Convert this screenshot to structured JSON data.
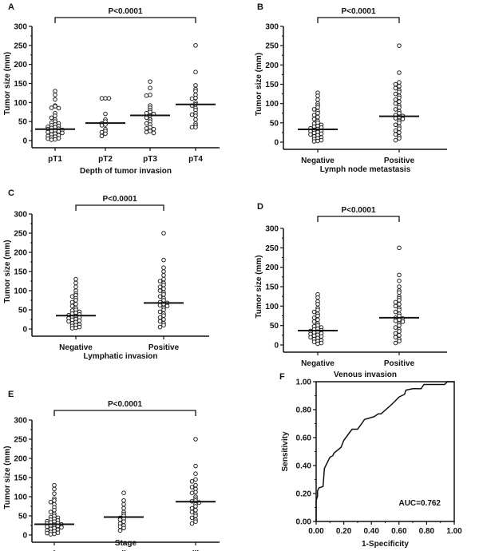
{
  "chart_data": [
    {
      "panel": "A",
      "type": "scatter",
      "ylabel": "Tumor size (mm)",
      "xlabel": "Depth of tumor invasion",
      "ylim": [
        0,
        300
      ],
      "yticks": [
        "0",
        "50",
        "100",
        "150",
        "200",
        "250",
        "300"
      ],
      "significance": "P<0.0001",
      "categories": [
        "pT1",
        "pT2",
        "pT3",
        "pT4"
      ],
      "medians": [
        30,
        46,
        66,
        95
      ],
      "groups": [
        [
          130,
          120,
          108,
          92,
          90,
          86,
          85,
          72,
          65,
          60,
          55,
          50,
          47,
          45,
          42,
          40,
          38,
          36,
          35,
          33,
          31,
          30,
          28,
          27,
          25,
          24,
          22,
          20,
          18,
          16,
          14,
          12,
          10,
          8,
          6,
          5,
          3,
          2
        ],
        [
          111,
          111,
          111,
          70,
          55,
          50,
          45,
          42,
          40,
          30,
          25,
          22,
          18,
          12
        ],
        [
          155,
          138,
          120,
          118,
          92,
          86,
          80,
          75,
          72,
          70,
          65,
          60,
          55,
          50,
          45,
          42,
          35,
          32,
          30,
          25,
          22,
          20
        ],
        [
          250,
          180,
          145,
          135,
          130,
          120,
          112,
          110,
          100,
          95,
          92,
          85,
          80,
          72,
          68,
          65,
          55,
          45,
          40,
          35,
          35
        ]
      ]
    },
    {
      "panel": "B",
      "type": "scatter",
      "ylabel": "Tumor size (mm)",
      "xlabel": "Lymph node metastasis",
      "ylim": [
        0,
        300
      ],
      "yticks": [
        "0",
        "50",
        "100",
        "150",
        "200",
        "250",
        "300"
      ],
      "significance": "P<0.0001",
      "categories": [
        "Negative",
        "Positive"
      ],
      "medians": [
        33,
        67
      ],
      "groups": [
        [
          128,
          120,
          110,
          100,
          95,
          90,
          85,
          80,
          75,
          70,
          65,
          60,
          55,
          50,
          48,
          45,
          42,
          40,
          38,
          36,
          34,
          32,
          30,
          28,
          26,
          24,
          22,
          20,
          18,
          15,
          12,
          10,
          8,
          5,
          3,
          2
        ],
        [
          250,
          180,
          155,
          150,
          145,
          140,
          135,
          130,
          125,
          120,
          115,
          110,
          105,
          100,
          95,
          90,
          85,
          80,
          75,
          70,
          68,
          65,
          62,
          60,
          55,
          50,
          45,
          40,
          35,
          30,
          25,
          20,
          15,
          10,
          5
        ]
      ]
    },
    {
      "panel": "C",
      "type": "scatter",
      "ylabel": "Tumor size (mm)",
      "xlabel": "Lymphatic invasion",
      "ylim": [
        0,
        300
      ],
      "yticks": [
        "0",
        "50",
        "100",
        "150",
        "200",
        "250",
        "300"
      ],
      "significance": "P<0.0001",
      "categories": [
        "Negative",
        "Positive"
      ],
      "medians": [
        35,
        68
      ],
      "groups": [
        [
          130,
          120,
          110,
          100,
          92,
          88,
          85,
          80,
          75,
          70,
          65,
          60,
          55,
          50,
          48,
          45,
          42,
          40,
          38,
          36,
          34,
          32,
          30,
          28,
          26,
          24,
          22,
          20,
          18,
          15,
          12,
          10,
          8,
          5,
          3,
          2
        ],
        [
          250,
          180,
          160,
          150,
          140,
          130,
          125,
          120,
          115,
          110,
          105,
          100,
          95,
          90,
          85,
          80,
          75,
          70,
          68,
          65,
          62,
          60,
          55,
          50,
          45,
          40,
          35,
          30,
          25,
          20,
          15,
          10,
          5
        ]
      ]
    },
    {
      "panel": "D",
      "type": "scatter",
      "ylabel": "Tumor size (mm)",
      "xlabel": "Venous invasion",
      "ylim": [
        0,
        300
      ],
      "yticks": [
        "0",
        "50",
        "100",
        "150",
        "200",
        "250",
        "300"
      ],
      "significance": "P<0.0001",
      "categories": [
        "Negative",
        "Positive"
      ],
      "medians": [
        37,
        70
      ],
      "groups": [
        [
          130,
          122,
          112,
          105,
          95,
          90,
          85,
          80,
          75,
          70,
          65,
          60,
          55,
          50,
          48,
          45,
          42,
          40,
          38,
          36,
          34,
          32,
          30,
          28,
          26,
          24,
          22,
          20,
          18,
          15,
          12,
          10,
          8,
          5,
          3
        ],
        [
          250,
          180,
          165,
          150,
          140,
          135,
          125,
          120,
          115,
          110,
          105,
          100,
          95,
          90,
          85,
          80,
          75,
          70,
          68,
          65,
          62,
          60,
          55,
          50,
          45,
          40,
          35,
          30,
          25,
          20,
          15,
          10,
          5
        ]
      ]
    },
    {
      "panel": "E",
      "type": "scatter",
      "ylabel": "Tumor size (mm)",
      "xlabel": "Stage",
      "ylim": [
        0,
        300
      ],
      "yticks": [
        "0",
        "50",
        "100",
        "150",
        "200",
        "250",
        "300"
      ],
      "significance": "P<0.0001",
      "categories": [
        "I",
        "II",
        "III"
      ],
      "medians": [
        28,
        47,
        87
      ],
      "groups": [
        [
          130,
          120,
          108,
          95,
          90,
          86,
          80,
          72,
          65,
          60,
          55,
          50,
          47,
          45,
          42,
          40,
          38,
          36,
          35,
          33,
          31,
          30,
          28,
          27,
          25,
          24,
          22,
          20,
          18,
          16,
          14,
          12,
          10,
          8,
          6,
          5,
          3,
          2
        ],
        [
          110,
          90,
          80,
          70,
          60,
          55,
          50,
          45,
          42,
          40,
          35,
          30,
          25,
          22,
          18,
          12
        ],
        [
          250,
          180,
          160,
          145,
          140,
          130,
          125,
          120,
          112,
          110,
          100,
          95,
          90,
          88,
          85,
          80,
          75,
          70,
          65,
          60,
          55,
          50,
          45,
          40,
          35,
          30
        ]
      ]
    },
    {
      "panel": "F",
      "type": "line",
      "ylabel": "Sensitivity",
      "xlabel": "1-Specificity",
      "xlim": [
        0,
        1
      ],
      "ylim": [
        0,
        1
      ],
      "xticks": [
        "0.00",
        "0.20",
        "0.40",
        "0.60",
        "0.80",
        "1.00"
      ],
      "yticks": [
        "0.00",
        "0.20",
        "0.40",
        "0.60",
        "0.80",
        "1.00"
      ],
      "annotation": "AUC=0.762",
      "points": [
        [
          0,
          0
        ],
        [
          0,
          0.15
        ],
        [
          0.01,
          0.18
        ],
        [
          0.01,
          0.22
        ],
        [
          0.02,
          0.24
        ],
        [
          0.05,
          0.25
        ],
        [
          0.06,
          0.38
        ],
        [
          0.08,
          0.42
        ],
        [
          0.1,
          0.46
        ],
        [
          0.12,
          0.47
        ],
        [
          0.13,
          0.49
        ],
        [
          0.18,
          0.53
        ],
        [
          0.2,
          0.58
        ],
        [
          0.23,
          0.62
        ],
        [
          0.26,
          0.66
        ],
        [
          0.3,
          0.66
        ],
        [
          0.33,
          0.7
        ],
        [
          0.35,
          0.73
        ],
        [
          0.42,
          0.75
        ],
        [
          0.45,
          0.77
        ],
        [
          0.47,
          0.77
        ],
        [
          0.55,
          0.84
        ],
        [
          0.6,
          0.89
        ],
        [
          0.64,
          0.91
        ],
        [
          0.65,
          0.94
        ],
        [
          0.7,
          0.95
        ],
        [
          0.76,
          0.95
        ],
        [
          0.78,
          0.98
        ],
        [
          0.93,
          0.98
        ],
        [
          0.95,
          1.0
        ],
        [
          1,
          1
        ]
      ]
    }
  ]
}
